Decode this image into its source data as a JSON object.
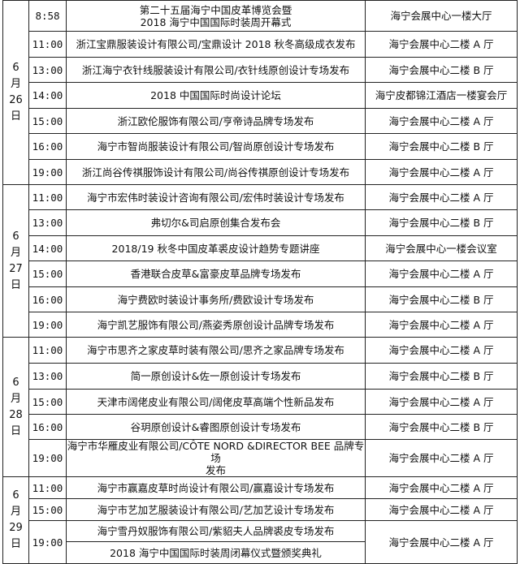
{
  "schedule": [
    {
      "date": [
        "6",
        "月",
        "26",
        "日"
      ],
      "rows": [
        {
          "time": "8:58",
          "events": [
            [
              "第二十五届海宁中国皮革博览会暨",
              "2018 海宁中国国际时装周开幕式"
            ]
          ],
          "venue": "海宁会展中心一楼大厅"
        },
        {
          "time": "11:00",
          "events": [
            [
              "浙江宝鼎服装设计有限公司/宝鼎设计 2018 秋冬高级成衣发布"
            ]
          ],
          "venue": "海宁会展中心二楼 A 厅"
        },
        {
          "time": "13:00",
          "events": [
            [
              "浙江海宁衣针线服装设计有限公司/衣针线原创设计专场发布"
            ]
          ],
          "venue": "海宁会展中心二楼 B 厅"
        },
        {
          "time": "14:00",
          "events": [
            [
              "2018 中国国际时尚设计论坛"
            ]
          ],
          "venue": "海宁皮都锦江酒店一楼宴会厅"
        },
        {
          "time": "15:00",
          "events": [
            [
              "浙江欧伦服饰有限公司/亨帝诗品牌专场发布"
            ]
          ],
          "venue": "海宁会展中心二楼 A 厅"
        },
        {
          "time": "16:00",
          "events": [
            [
              "海宁市智尚服装设计有限公司/智尚原创设计专场发布"
            ]
          ],
          "venue": "海宁会展中心二楼 B 厅"
        },
        {
          "time": "19:00",
          "events": [
            [
              "浙江尚谷传祺服饰设计有限公司/尚谷传祺原创设计专场发布"
            ]
          ],
          "venue": "海宁会展中心二楼 A 厅"
        }
      ]
    },
    {
      "date": [
        "6",
        "月",
        "27",
        "日"
      ],
      "rows": [
        {
          "time": "11:00",
          "events": [
            [
              "海宁市宏伟时装设计咨询有限公司/宏伟时装设计专场发布"
            ]
          ],
          "venue": "海宁会展中心二楼 A 厅"
        },
        {
          "time": "13:00",
          "events": [
            [
              "弗切尔&司启原创集合发布会"
            ]
          ],
          "venue": "海宁会展中心二楼 B 厅"
        },
        {
          "time": "14:00",
          "events": [
            [
              "2018/19 秋冬中国皮革裘皮设计趋势专题讲座"
            ]
          ],
          "venue": "海宁会展中心一楼会议室"
        },
        {
          "time": "15:00",
          "events": [
            [
              "香港联合皮草&富豪皮草品牌专场发布"
            ]
          ],
          "venue": "海宁会展中心二楼 A 厅"
        },
        {
          "time": "16:00",
          "events": [
            [
              "海宁费欧时装设计事务所/费欧设计专场发布"
            ]
          ],
          "venue": "海宁会展中心二楼 B 厅"
        },
        {
          "time": "19:00",
          "events": [
            [
              "海宁凯艺服饰有限公司/燕姿秀原创设计品牌专场发布"
            ]
          ],
          "venue": "海宁会展中心二楼 A 厅"
        }
      ]
    },
    {
      "date": [
        "6",
        "月",
        "28",
        "日"
      ],
      "rows": [
        {
          "time": "11:00",
          "events": [
            [
              "海宁市思齐之家皮草时装有限公司/思齐之家品牌专场发布"
            ]
          ],
          "venue": "海宁会展中心二楼 A 厅"
        },
        {
          "time": "13:00",
          "events": [
            [
              "简一原创设计&佐一原创设计专场发布"
            ]
          ],
          "venue": "海宁会展中心二楼 B 厅"
        },
        {
          "time": "15:00",
          "events": [
            [
              "天津市阔佬皮业有限公司/阔佬皮草高端个性新品发布"
            ]
          ],
          "venue": "海宁会展中心二楼 A 厅"
        },
        {
          "time": "16:00",
          "events": [
            [
              "谷玥原创设计&睿图原创设计专场发布"
            ]
          ],
          "venue": "海宁会展中心二楼 B 厅"
        },
        {
          "time": "19:00",
          "events": [
            [
              "海宁市华雁皮业有限公司/CÔTE NORD &DIRECTOR BEE 品牌专场",
              "发布"
            ]
          ],
          "venue": "海宁会展中心二楼 A 厅"
        }
      ]
    },
    {
      "date": [
        "6",
        "月",
        "29",
        "日"
      ],
      "rows": [
        {
          "time": "11:00",
          "events": [
            [
              "海宁市赢嘉皮草时尚设计有限公司/赢嘉设计专场发布"
            ]
          ],
          "venue": "海宁会展中心二楼 A 厅"
        },
        {
          "time": "15:00",
          "events": [
            [
              "海宁市艺加艺服装设计有限公司/艺加艺设计专场发布"
            ]
          ],
          "venue": "海宁会展中心二楼 A 厅"
        },
        {
          "time": "19:00",
          "events": [
            [
              "海宁雪丹奴服饰有限公司/紫貂夫人品牌裘皮专场发布"
            ],
            [
              "2018 海宁中国国际时装周闭幕仪式暨颁奖典礼"
            ]
          ],
          "venue": "海宁会展中心二楼 A 厅"
        }
      ]
    }
  ]
}
